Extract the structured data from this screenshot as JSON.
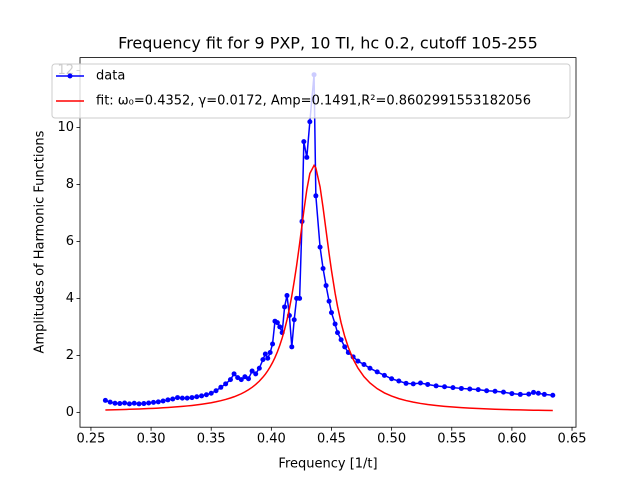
{
  "chart_data": {
    "type": "line",
    "title": "Frequency fit for 9 PXP, 10 TI, hc 0.2, cutoff 105-255",
    "x_label": "Frequency [1/t]",
    "y_label": "Amplitudes of Harmonic Functions",
    "x": [
      0.262,
      0.266,
      0.27,
      0.274,
      0.278,
      0.282,
      0.286,
      0.29,
      0.294,
      0.298,
      0.302,
      0.306,
      0.31,
      0.314,
      0.318,
      0.322,
      0.326,
      0.33,
      0.334,
      0.338,
      0.342,
      0.346,
      0.35,
      0.354,
      0.358,
      0.362,
      0.366,
      0.369,
      0.372,
      0.375,
      0.378,
      0.381,
      0.384,
      0.387,
      0.39,
      0.393,
      0.395,
      0.397,
      0.399,
      0.401,
      0.403,
      0.405,
      0.407,
      0.409,
      0.411,
      0.413,
      0.415,
      0.417,
      0.419,
      0.421,
      0.4235,
      0.4255,
      0.427,
      0.4295,
      0.432,
      0.4355,
      0.437,
      0.4405,
      0.443,
      0.4455,
      0.448,
      0.45,
      0.453,
      0.455,
      0.458,
      0.461,
      0.464,
      0.468,
      0.472,
      0.477,
      0.482,
      0.488,
      0.494,
      0.5,
      0.506,
      0.512,
      0.518,
      0.524,
      0.53,
      0.537,
      0.544,
      0.551,
      0.558,
      0.565,
      0.572,
      0.579,
      0.586,
      0.593,
      0.6,
      0.607,
      0.614,
      0.618,
      0.622,
      0.627,
      0.634
    ],
    "series": [
      {
        "name": "data",
        "color": "#0000ff",
        "marker": true,
        "values": [
          0.42,
          0.36,
          0.32,
          0.31,
          0.33,
          0.3,
          0.32,
          0.3,
          0.31,
          0.33,
          0.35,
          0.37,
          0.4,
          0.44,
          0.47,
          0.52,
          0.5,
          0.5,
          0.52,
          0.55,
          0.58,
          0.62,
          0.67,
          0.76,
          0.88,
          1.0,
          1.15,
          1.35,
          1.22,
          1.15,
          1.25,
          1.18,
          1.45,
          1.35,
          1.55,
          1.85,
          2.05,
          1.9,
          2.1,
          2.4,
          3.2,
          3.15,
          3.0,
          2.8,
          3.7,
          4.1,
          3.4,
          2.3,
          3.25,
          4.0,
          4.0,
          6.7,
          9.5,
          8.95,
          10.2,
          11.85,
          7.6,
          5.8,
          5.05,
          4.45,
          3.9,
          3.5,
          3.1,
          2.8,
          2.55,
          2.3,
          2.1,
          1.95,
          1.8,
          1.68,
          1.55,
          1.42,
          1.3,
          1.18,
          1.1,
          1.02,
          1.0,
          1.03,
          0.98,
          0.93,
          0.9,
          0.87,
          0.84,
          0.82,
          0.8,
          0.76,
          0.74,
          0.71,
          0.66,
          0.63,
          0.64,
          0.7,
          0.67,
          0.63,
          0.6
        ]
      },
      {
        "name": "fit: ω₀=0.4352, γ=0.0172, Amp=0.1491,R²=0.8602991553182056",
        "color": "#ff0000",
        "marker": false,
        "values": [
          0.085,
          0.089,
          0.093,
          0.098,
          0.103,
          0.108,
          0.114,
          0.12,
          0.127,
          0.134,
          0.142,
          0.151,
          0.161,
          0.171,
          0.183,
          0.196,
          0.21,
          0.226,
          0.243,
          0.263,
          0.286,
          0.311,
          0.339,
          0.372,
          0.41,
          0.454,
          0.504,
          0.548,
          0.598,
          0.654,
          0.719,
          0.793,
          0.879,
          0.979,
          1.096,
          1.235,
          1.341,
          1.461,
          1.597,
          1.749,
          1.924,
          2.123,
          2.351,
          2.612,
          2.908,
          3.25,
          3.643,
          4.09,
          4.596,
          5.15,
          5.923,
          6.576,
          7.065,
          7.819,
          8.381,
          8.666,
          8.577,
          7.915,
          7.184,
          6.379,
          5.575,
          4.98,
          4.184,
          3.727,
          3.143,
          2.666,
          2.28,
          1.869,
          1.554,
          1.255,
          1.032,
          0.832,
          0.683,
          0.571,
          0.483,
          0.414,
          0.359,
          0.314,
          0.276,
          0.241,
          0.211,
          0.187,
          0.167,
          0.15,
          0.135,
          0.122,
          0.111,
          0.102,
          0.093,
          0.086,
          0.08,
          0.076,
          0.073,
          0.069,
          0.064
        ]
      }
    ],
    "xlim": [
      0.2409,
      0.6533
    ],
    "ylim": [
      -0.52,
      12.45
    ],
    "xticks": [
      0.25,
      {
        "value": 0.3,
        "label": "0.30"
      },
      0.35,
      {
        "value": 0.4,
        "label": "0.40"
      },
      0.45,
      {
        "value": 0.5,
        "label": "0.50"
      },
      0.55,
      {
        "value": 0.6,
        "label": "0.60"
      },
      0.65
    ],
    "yticks": [
      0,
      2,
      4,
      6,
      8,
      10,
      12
    ],
    "legend": "upper left"
  }
}
